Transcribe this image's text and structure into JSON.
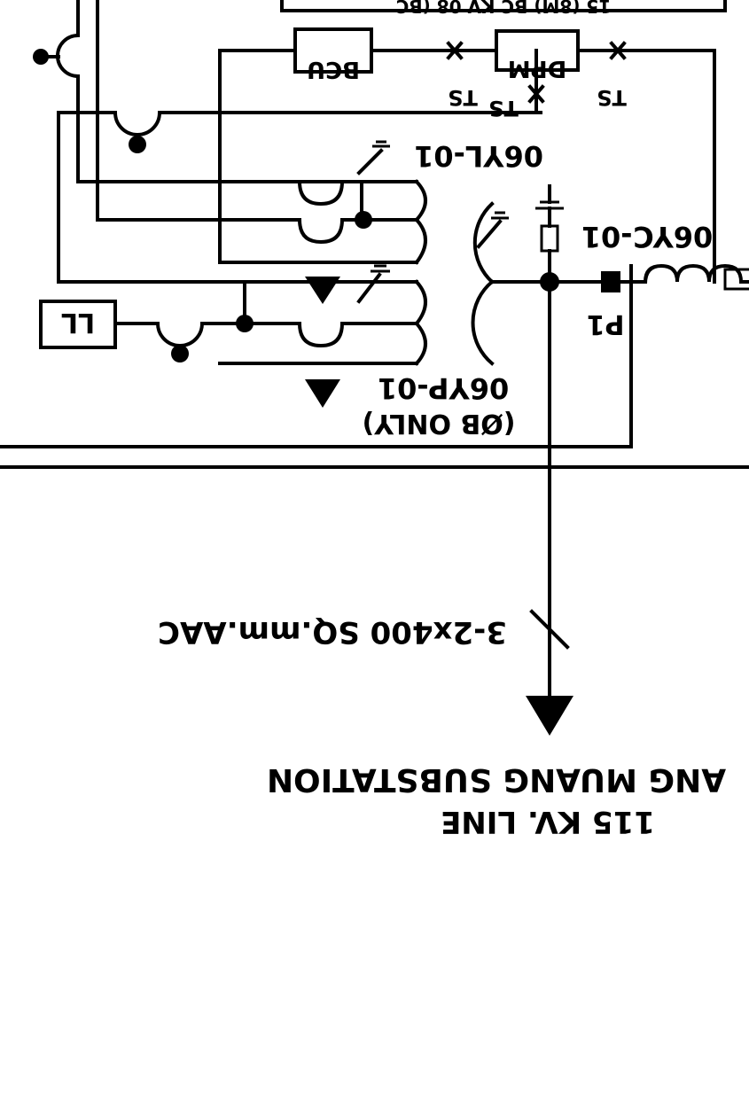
{
  "labels": {
    "top_box": "15 (8M) BC KV 08 (BC",
    "bcu": "BCU",
    "dpm": "DPM",
    "ts_left": "TS",
    "ts_middle": "TS",
    "ts_right": "TS",
    "ct_06yl": "06YL-01",
    "ct_06yc": "06YC-01",
    "ct_06yp": "06YP-01",
    "phase_b_only": "(ØB ONLY)",
    "ll": "LL",
    "p1": "P1",
    "conductor": "3-2x400 SQ.mm.AAC",
    "line_voltage": "115 KV. LINE",
    "substation": "ANG MUANG SUBSTATION"
  }
}
